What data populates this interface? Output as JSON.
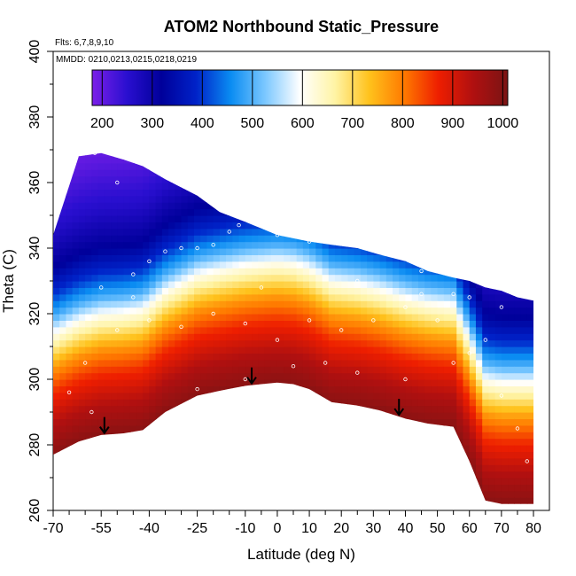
{
  "chart_data": {
    "type": "heatmap",
    "title": "ATOM2 Northbound Static_Pressure",
    "notes": {
      "flights": "Flts: 6,7,8,9,10",
      "dates": "MMDD: 0210,0213,0215,0218,0219"
    },
    "xlabel": "Latitude (deg N)",
    "ylabel": "Theta (C)",
    "xlim": [
      -70,
      80
    ],
    "ylim": [
      260,
      400
    ],
    "x_ticks": [
      -70,
      -55,
      -40,
      -25,
      -10,
      0,
      10,
      20,
      30,
      40,
      50,
      60,
      70,
      80
    ],
    "x_tick_labels": [
      "-70",
      "-55",
      "-40",
      "-25",
      "-10",
      "0",
      "10",
      "20",
      "30",
      "40",
      "50",
      "60",
      "70",
      "80"
    ],
    "y_ticks": [
      260,
      280,
      300,
      320,
      340,
      360,
      380,
      400
    ],
    "y_tick_labels": [
      "260",
      "280",
      "300",
      "320",
      "340",
      "360",
      "380",
      "400"
    ],
    "colorbar": {
      "range": [
        180,
        1010
      ],
      "ticks": [
        200,
        300,
        400,
        500,
        600,
        700,
        800,
        900,
        1000
      ],
      "tick_labels": [
        "200",
        "300",
        "400",
        "500",
        "600",
        "700",
        "800",
        "900",
        "1000"
      ],
      "colors": [
        "#7b1fe8",
        "#2a0fd0",
        "#00009a",
        "#0022c8",
        "#0a8cf2",
        "#7cc8ff",
        "#ffffff",
        "#fff4a6",
        "#ffc21c",
        "#ff7a00",
        "#ee1e00",
        "#b01010",
        "#7a1414"
      ]
    },
    "field": {
      "lat": [
        -70,
        -62,
        -55,
        -48,
        -42,
        -35,
        -25,
        -18,
        -10,
        -5,
        0,
        5,
        10,
        17,
        25,
        32,
        40,
        47,
        55,
        60,
        65,
        70,
        75,
        80
      ],
      "theta_top": [
        344,
        368,
        369,
        367,
        365,
        361,
        356,
        351,
        348,
        346,
        344,
        343,
        342,
        341,
        340,
        338,
        336,
        333,
        331,
        330,
        328,
        327,
        325,
        324
      ],
      "theta_bottom": [
        277,
        281,
        283,
        283.5,
        284.5,
        290,
        295,
        296.5,
        298,
        298.5,
        299,
        298.5,
        297,
        293,
        292,
        290.5,
        288,
        286.5,
        285.5,
        275,
        263,
        262,
        262,
        262
      ],
      "levels": [
        {
          "theta": 275,
          "pressure": 995
        },
        {
          "theta": 285,
          "pressure": 940
        },
        {
          "theta": 295,
          "pressure": 860
        },
        {
          "theta": 302,
          "pressure": 780
        },
        {
          "theta": 307,
          "pressure": 700
        },
        {
          "theta": 312,
          "pressure": 620
        },
        {
          "theta": 318,
          "pressure": 500
        },
        {
          "theta": 325,
          "pressure": 400
        },
        {
          "theta": 333,
          "pressure": 320
        },
        {
          "theta": 345,
          "pressure": 260
        },
        {
          "theta": 360,
          "pressure": 205
        }
      ]
    },
    "flight_points_approx": [
      {
        "lat": -57,
        "theta": 369
      },
      {
        "lat": -50,
        "theta": 360
      },
      {
        "lat": -45,
        "theta": 332
      },
      {
        "lat": -40,
        "theta": 336
      },
      {
        "lat": -35,
        "theta": 339
      },
      {
        "lat": -30,
        "theta": 340
      },
      {
        "lat": -25,
        "theta": 340
      },
      {
        "lat": -20,
        "theta": 341
      },
      {
        "lat": -15,
        "theta": 345
      },
      {
        "lat": -12,
        "theta": 347
      },
      {
        "lat": 0,
        "theta": 344
      },
      {
        "lat": 10,
        "theta": 342
      },
      {
        "lat": 20,
        "theta": 342
      },
      {
        "lat": 30,
        "theta": 344
      },
      {
        "lat": 35,
        "theta": 338
      },
      {
        "lat": 45,
        "theta": 333
      },
      {
        "lat": 55,
        "theta": 326
      },
      {
        "lat": 70,
        "theta": 322
      },
      {
        "lat": -60,
        "theta": 305
      },
      {
        "lat": -50,
        "theta": 315
      },
      {
        "lat": -40,
        "theta": 318
      },
      {
        "lat": -30,
        "theta": 316
      },
      {
        "lat": -20,
        "theta": 320
      },
      {
        "lat": -10,
        "theta": 317
      },
      {
        "lat": 0,
        "theta": 312
      },
      {
        "lat": 10,
        "theta": 318
      },
      {
        "lat": 20,
        "theta": 315
      },
      {
        "lat": 30,
        "theta": 318
      },
      {
        "lat": 40,
        "theta": 322
      },
      {
        "lat": 50,
        "theta": 318
      },
      {
        "lat": 60,
        "theta": 308
      },
      {
        "lat": 70,
        "theta": 295
      },
      {
        "lat": 75,
        "theta": 285
      },
      {
        "lat": -65,
        "theta": 296
      },
      {
        "lat": -58,
        "theta": 290
      },
      {
        "lat": -25,
        "theta": 297
      },
      {
        "lat": -10,
        "theta": 300
      },
      {
        "lat": 5,
        "theta": 304
      },
      {
        "lat": 15,
        "theta": 305
      },
      {
        "lat": 25,
        "theta": 302
      },
      {
        "lat": 40,
        "theta": 300
      },
      {
        "lat": 55,
        "theta": 305
      },
      {
        "lat": 65,
        "theta": 312
      },
      {
        "lat": 78,
        "theta": 275
      },
      {
        "lat": 60,
        "theta": 325
      },
      {
        "lat": -55,
        "theta": 328
      },
      {
        "lat": -45,
        "theta": 325
      },
      {
        "lat": 25,
        "theta": 330
      },
      {
        "lat": 45,
        "theta": 326
      },
      {
        "lat": -5,
        "theta": 328
      }
    ],
    "arrows_lat": [
      -54,
      -8,
      38
    ],
    "legend": "colorbar, top inside plot"
  }
}
